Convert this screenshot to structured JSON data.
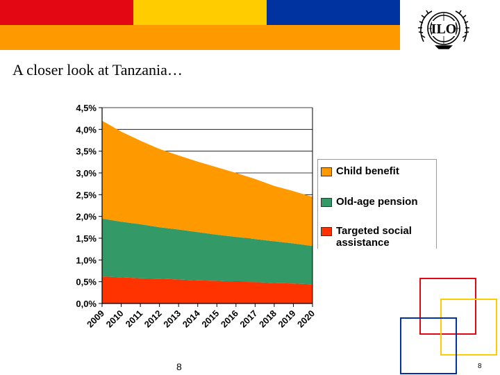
{
  "colors": {
    "bar_red": "#E30613",
    "bar_yellow": "#FFCC00",
    "bar_blue": "#0033A0",
    "bar_orange": "#FF9900",
    "child_benefit": "#FF9900",
    "old_age_pension": "#339966",
    "targeted_social_assistance": "#FF3300"
  },
  "logo": {
    "text": "ILO",
    "icon": "ilo-logo-icon"
  },
  "slide": {
    "title": "A closer look at Tanzania…",
    "page_number_center": "8",
    "page_number_right": "8"
  },
  "chart_data": {
    "type": "area",
    "stacked": true,
    "title": "",
    "xlabel": "",
    "ylabel": "",
    "ylim": [
      0,
      4.5
    ],
    "yticks": [
      "0,0%",
      "0,5%",
      "1,0%",
      "1,5%",
      "2,0%",
      "2,5%",
      "3,0%",
      "3,5%",
      "4,0%",
      "4,5%"
    ],
    "x": [
      "2009",
      "2010",
      "2011",
      "2012",
      "2013",
      "2014",
      "2015",
      "2016",
      "2017",
      "2018",
      "2019",
      "2020"
    ],
    "series": [
      {
        "name": "Targeted social assistance",
        "values": [
          0.62,
          0.6,
          0.58,
          0.57,
          0.55,
          0.53,
          0.52,
          0.5,
          0.49,
          0.47,
          0.46,
          0.44
        ]
      },
      {
        "name": "Old-age pension",
        "values": [
          1.33,
          1.28,
          1.24,
          1.18,
          1.15,
          1.11,
          1.06,
          1.03,
          0.99,
          0.96,
          0.92,
          0.88
        ]
      },
      {
        "name": "Child benefit",
        "values": [
          2.25,
          2.07,
          1.92,
          1.8,
          1.7,
          1.62,
          1.55,
          1.47,
          1.38,
          1.27,
          1.2,
          1.13
        ]
      }
    ],
    "legend": {
      "position": "right",
      "entries": [
        "Child benefit",
        "Old-age pension",
        "Targeted social assistance"
      ]
    },
    "grid": true
  }
}
